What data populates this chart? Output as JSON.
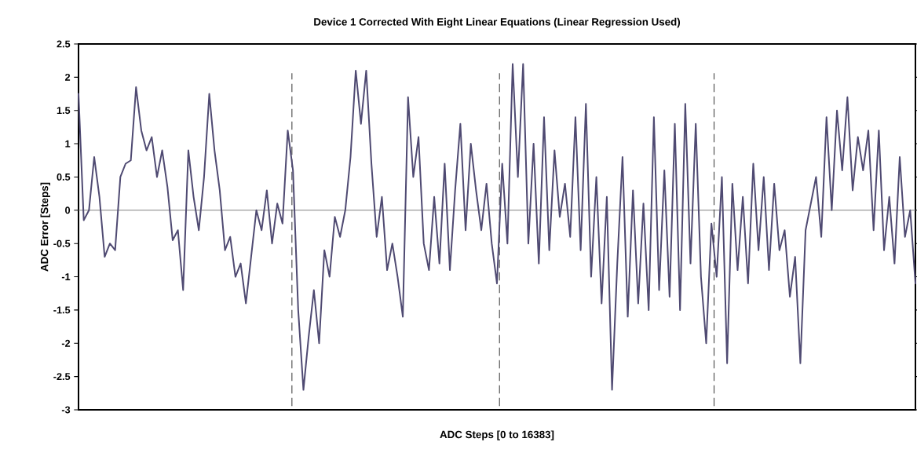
{
  "chart_data": {
    "type": "line",
    "title": "Device 1 Corrected With Eight Linear Equations (Linear Regression Used)",
    "xlabel": "ADC Steps [0 to 16383]",
    "ylabel": "ADC Error [Steps]",
    "categories": [
      null,
      null,
      null,
      null,
      null,
      null,
      null,
      null,
      null,
      null,
      null,
      null,
      null,
      null,
      null,
      null,
      null,
      null,
      null,
      null,
      null,
      null,
      null,
      null,
      null,
      null,
      null,
      null,
      null,
      null,
      null,
      null,
      null,
      null,
      null,
      null,
      null,
      null,
      null,
      null,
      null,
      null,
      null,
      null,
      null,
      null,
      null,
      null,
      null,
      null,
      null,
      null,
      null,
      null,
      null,
      null,
      null,
      null,
      null,
      null,
      null,
      null,
      null,
      null,
      null,
      null,
      null,
      null,
      null,
      null,
      null,
      null,
      null,
      null,
      null,
      null,
      null,
      null,
      null,
      null,
      null,
      null,
      null,
      null,
      null,
      null,
      null,
      null,
      null,
      null,
      null,
      null,
      null,
      null,
      null,
      null,
      null,
      null,
      null,
      null,
      null,
      null,
      null,
      null,
      null,
      null,
      null,
      null,
      null,
      null,
      null,
      null,
      null,
      null,
      null,
      null,
      null,
      null,
      null,
      null,
      null,
      null,
      null,
      null,
      null,
      null,
      null,
      null,
      null,
      null,
      null,
      null,
      null,
      null,
      null,
      null,
      null,
      null,
      null,
      null,
      null,
      null,
      null,
      null,
      null,
      null,
      null,
      null,
      null,
      null,
      null,
      null,
      null,
      null,
      null,
      null,
      null,
      null,
      null,
      null,
      null
    ],
    "series": [
      {
        "color": "#4f4a72",
        "values": [
          1.75,
          -0.15,
          0.0,
          0.8,
          0.2,
          -0.7,
          -0.5,
          -0.6,
          0.5,
          0.7,
          0.75,
          1.85,
          1.2,
          0.9,
          1.1,
          0.5,
          0.9,
          0.35,
          -0.45,
          -0.3,
          -1.2,
          0.9,
          0.2,
          -0.3,
          0.5,
          1.75,
          0.9,
          0.3,
          -0.6,
          -0.4,
          -1.0,
          -0.8,
          -1.4,
          -0.7,
          0.0,
          -0.3,
          0.3,
          -0.5,
          0.1,
          -0.2,
          1.2,
          0.6,
          -1.5,
          -2.7,
          -1.9,
          -1.2,
          -2.0,
          -0.6,
          -1.0,
          -0.1,
          -0.4,
          0.0,
          0.8,
          2.1,
          1.3,
          2.1,
          0.7,
          -0.4,
          0.2,
          -0.9,
          -0.5,
          -1.0,
          -1.6,
          1.7,
          0.5,
          1.1,
          -0.5,
          -0.9,
          0.2,
          -0.8,
          0.7,
          -0.9,
          0.3,
          1.3,
          -0.3,
          1.0,
          0.3,
          -0.3,
          0.4,
          -0.5,
          -1.1,
          0.7,
          -0.5,
          2.2,
          0.5,
          2.2,
          -0.5,
          1.0,
          -0.8,
          1.4,
          -0.6,
          0.9,
          -0.1,
          0.4,
          -0.4,
          1.4,
          -0.6,
          1.6,
          -1.0,
          0.5,
          -1.4,
          0.2,
          -2.7,
          -0.8,
          0.8,
          -1.6,
          0.3,
          -1.4,
          0.1,
          -1.5,
          1.4,
          -1.2,
          0.6,
          -1.3,
          1.3,
          -1.5,
          1.6,
          -0.8,
          1.3,
          -1.0,
          -2.0,
          -0.2,
          -1.0,
          0.5,
          -2.3,
          0.4,
          -0.9,
          0.2,
          -1.1,
          0.7,
          -0.6,
          0.5,
          -0.9,
          0.4,
          -0.6,
          -0.3,
          -1.3,
          -0.7,
          -2.3,
          -0.3,
          0.1,
          0.5,
          -0.4,
          1.4,
          0.0,
          1.5,
          0.6,
          1.7,
          0.3,
          1.1,
          0.6,
          1.2,
          -0.3,
          1.2,
          -0.6,
          0.2,
          -0.8,
          0.8,
          -0.4,
          0.0,
          -1.1
        ]
      }
    ],
    "ylim": [
      -3,
      2.5
    ],
    "yticks": [
      -3,
      -2.5,
      -2,
      -1.5,
      -1,
      -0.5,
      0,
      0.5,
      1,
      1.5,
      2,
      2.5
    ],
    "tick_labels": "y",
    "marker": "none",
    "line_style": "solid",
    "ref_lines": [
      {
        "axis": "y",
        "value": 0,
        "color": "#808080"
      }
    ]
  }
}
